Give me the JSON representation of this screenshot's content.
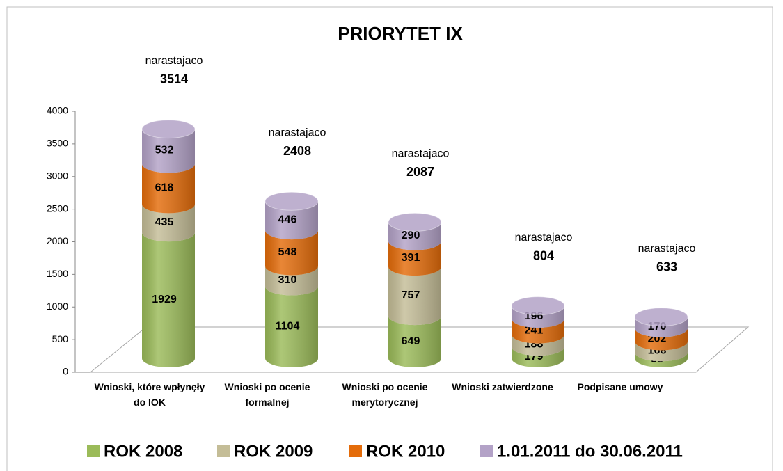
{
  "chart_data": {
    "type": "cylinder-stacked-bar",
    "title": "PRIORYTET IX",
    "categories": [
      "Wnioski, które wpłynęły do IOK",
      "Wnioski po ocenie formalnej",
      "Wnioski po ocenie merytorycznej",
      "Wnioski zatwierdzone",
      "Podpisane umowy"
    ],
    "series": [
      {
        "name": "ROK 2008",
        "color": "#9bbb59",
        "values": [
          1929,
          1104,
          649,
          179,
          93
        ]
      },
      {
        "name": "ROK 2009",
        "color": "#c4bd97",
        "values": [
          435,
          310,
          757,
          188,
          168
        ]
      },
      {
        "name": "ROK 2010",
        "color": "#e46c0a",
        "values": [
          618,
          548,
          391,
          241,
          202
        ]
      },
      {
        "name": "1.01.2011 do 30.06.2011",
        "color": "#b3a2c7",
        "values": [
          532,
          446,
          290,
          196,
          170
        ]
      }
    ],
    "annotations": [
      {
        "text": "narastajaco",
        "value": 3514
      },
      {
        "text": "narastajaco",
        "value": 2408
      },
      {
        "text": "narastajaco",
        "value": 2087
      },
      {
        "text": "narastajaco",
        "value": 804
      },
      {
        "text": "narastajaco",
        "value": 633
      }
    ],
    "ylim": [
      0,
      4000
    ],
    "yticks": [
      0,
      500,
      1000,
      1500,
      2000,
      2500,
      3000,
      3500,
      4000
    ],
    "legend": "bottom"
  }
}
